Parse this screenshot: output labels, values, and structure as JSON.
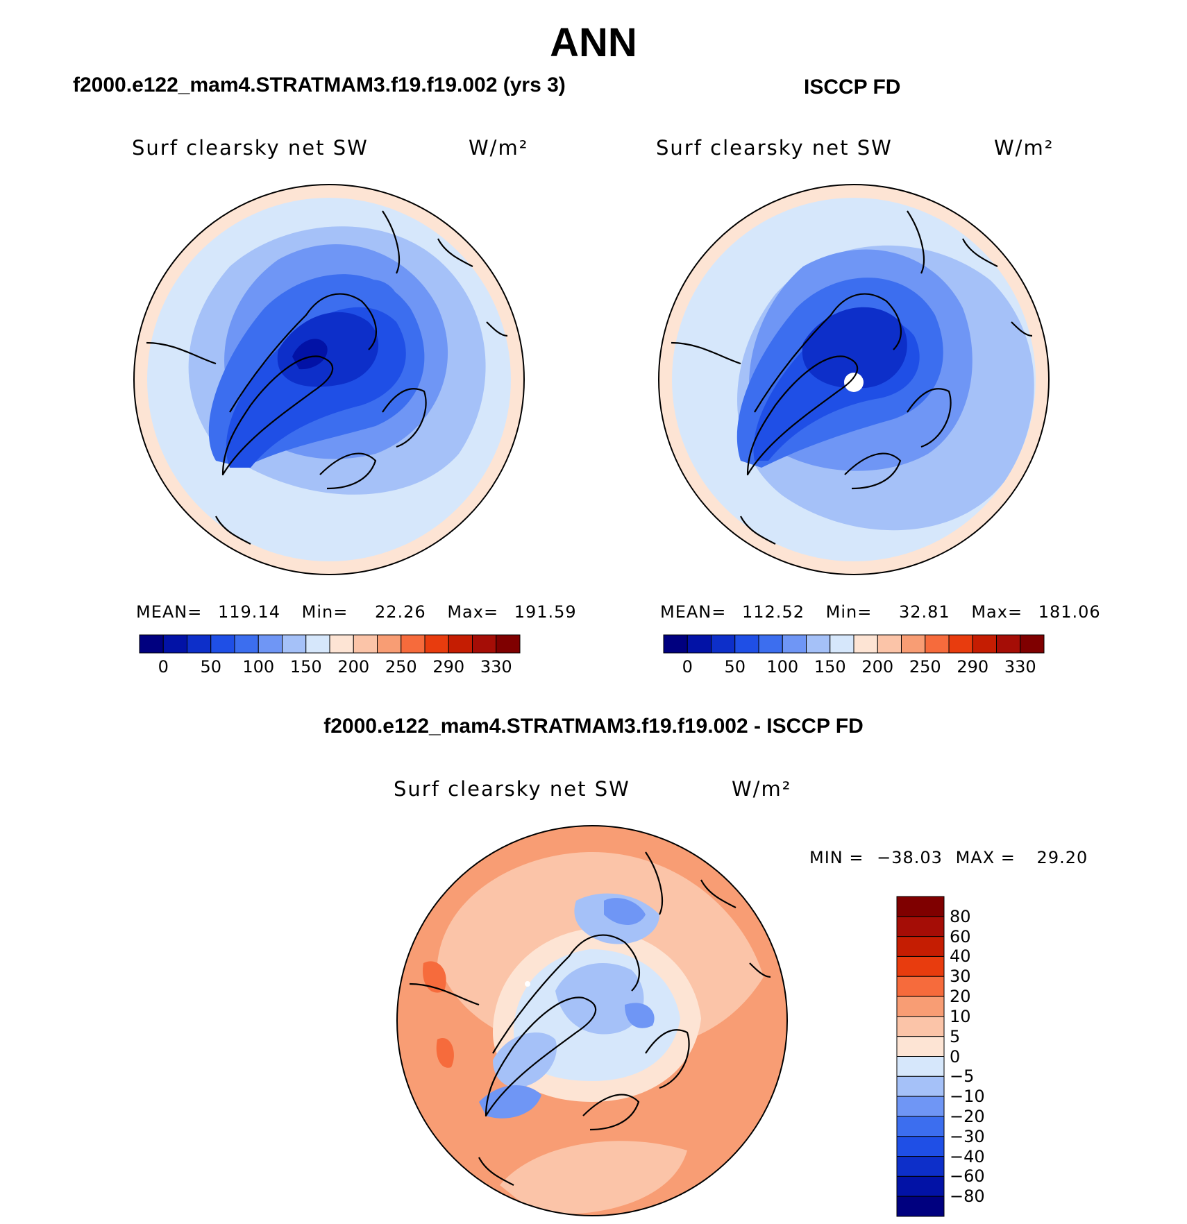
{
  "title": "ANN",
  "panels": [
    {
      "id": "model",
      "subtitle": "f2000.e122_mam4.STRATMAM3.f19.f19.002 (yrs 3)",
      "var_label": "Surf clearsky net SW",
      "units_label": "W/m²",
      "stats": {
        "mean_label": "MEAN=",
        "mean": "119.14",
        "min_label": "Min=",
        "min": "22.26",
        "max_label": "Max=",
        "max": "191.59"
      },
      "colorbar_ticks": [
        "0",
        "50",
        "100",
        "150",
        "200",
        "250",
        "290",
        "330"
      ]
    },
    {
      "id": "obs",
      "subtitle": "ISCCP FD",
      "var_label": "Surf clearsky net SW",
      "units_label": "W/m²",
      "stats": {
        "mean_label": "MEAN=",
        "mean": "112.52",
        "min_label": "Min=",
        "min": "32.81",
        "max_label": "Max=",
        "max": "181.06"
      },
      "colorbar_ticks": [
        "0",
        "50",
        "100",
        "150",
        "200",
        "250",
        "290",
        "330"
      ]
    },
    {
      "id": "diff",
      "subtitle": "f2000.e122_mam4.STRATMAM3.f19.f19.002 - ISCCP FD",
      "var_label": "Surf clearsky net SW",
      "units_label": "W/m²",
      "stats": {
        "min_label": "MIN =",
        "min": "−38.03",
        "max_label": "MAX =",
        "max": "29.20"
      },
      "colorbar_ticks": [
        "80",
        "60",
        "40",
        "30",
        "20",
        "10",
        "5",
        "0",
        "−5",
        "−10",
        "−20",
        "−30",
        "−40",
        "−60",
        "−80"
      ]
    }
  ],
  "chart_data": [
    {
      "type": "heatmap",
      "projection": "north-polar stereographic",
      "title": "f2000.e122_mam4.STRATMAM3.f19.f19.002 (yrs 3)",
      "variable": "Surf clearsky net SW",
      "units": "W/m²",
      "mean": 119.14,
      "min": 22.26,
      "max": 191.59,
      "levels": [
        0,
        25,
        50,
        75,
        100,
        125,
        150,
        175,
        200,
        225,
        250,
        270,
        290,
        310,
        330
      ],
      "colors": [
        "#00007f",
        "#0212a6",
        "#0d2fc9",
        "#1f4fe6",
        "#3c6eef",
        "#6f96f5",
        "#a5c1f8",
        "#d6e7fb",
        "#fde4d4",
        "#fbc4a8",
        "#f89d74",
        "#f66b3c",
        "#e83c0e",
        "#c51d02",
        "#a50d06",
        "#7f0000"
      ]
    },
    {
      "type": "heatmap",
      "projection": "north-polar stereographic",
      "title": "ISCCP FD",
      "variable": "Surf clearsky net SW",
      "units": "W/m²",
      "mean": 112.52,
      "min": 32.81,
      "max": 181.06,
      "levels": [
        0,
        25,
        50,
        75,
        100,
        125,
        150,
        175,
        200,
        225,
        250,
        270,
        290,
        310,
        330
      ]
    },
    {
      "type": "heatmap",
      "projection": "north-polar stereographic",
      "title": "f2000.e122_mam4.STRATMAM3.f19.f19.002 - ISCCP FD",
      "variable": "Surf clearsky net SW",
      "units": "W/m²",
      "min": -38.03,
      "max": 29.2,
      "levels": [
        -80,
        -60,
        -40,
        -30,
        -20,
        -10,
        -5,
        0,
        5,
        10,
        20,
        30,
        40,
        60,
        80
      ],
      "colors": [
        "#00007f",
        "#0212a6",
        "#0d2fc9",
        "#1f4fe6",
        "#3c6eef",
        "#6f96f5",
        "#a5c1f8",
        "#d6e7fb",
        "#fde4d4",
        "#fbc4a8",
        "#f89d74",
        "#f66b3c",
        "#e83c0e",
        "#c51d02",
        "#a50d06",
        "#7f0000"
      ]
    }
  ]
}
